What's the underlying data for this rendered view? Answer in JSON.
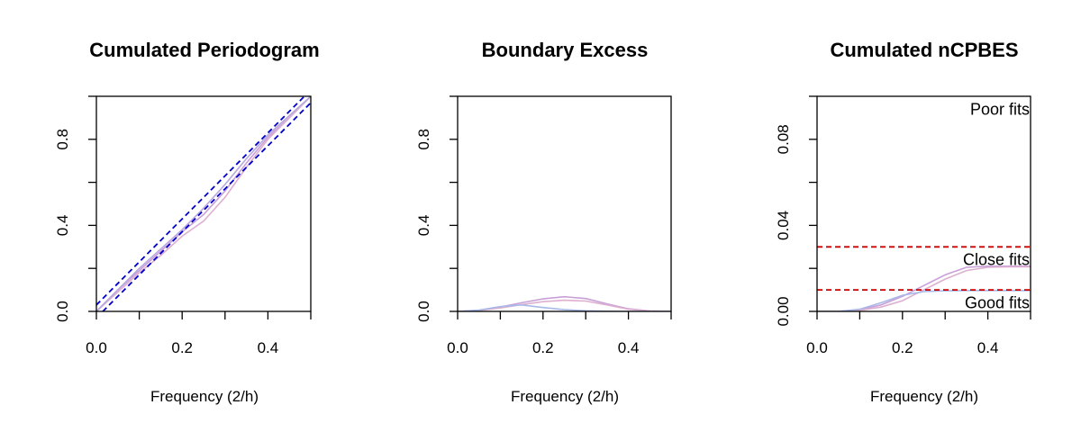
{
  "chart_data": [
    {
      "type": "line",
      "title": "Cumulated Periodogram",
      "xlabel": "Frequency (2/h)",
      "ylabel": "",
      "xlim": [
        0,
        0.5
      ],
      "ylim": [
        0,
        1
      ],
      "x_ticks": [
        0.0,
        0.1,
        0.2,
        0.3,
        0.4,
        0.5
      ],
      "x_tick_labels": [
        "0.0",
        "",
        "0.2",
        "",
        "0.4",
        ""
      ],
      "y_ticks": [
        0.0,
        0.2,
        0.4,
        0.6,
        0.8,
        1.0
      ],
      "y_tick_labels": [
        "0.0",
        "",
        "0.4",
        "",
        "0.8",
        ""
      ],
      "series": [
        {
          "color": "#c8a0d8",
          "x": [
            0,
            0.05,
            0.1,
            0.15,
            0.2,
            0.25,
            0.3,
            0.35,
            0.4,
            0.45,
            0.5
          ],
          "y": [
            0,
            0.1,
            0.19,
            0.28,
            0.37,
            0.45,
            0.56,
            0.69,
            0.81,
            0.9,
            1.0
          ]
        },
        {
          "color": "#ddb0cf",
          "x": [
            0,
            0.05,
            0.1,
            0.15,
            0.2,
            0.25,
            0.3,
            0.35,
            0.4,
            0.45,
            0.5
          ],
          "y": [
            0,
            0.09,
            0.18,
            0.26,
            0.35,
            0.42,
            0.53,
            0.67,
            0.8,
            0.9,
            1.0
          ]
        },
        {
          "color": "#b8a8e0",
          "x": [
            0,
            0.05,
            0.1,
            0.15,
            0.2,
            0.25,
            0.3,
            0.35,
            0.4,
            0.45,
            0.5
          ],
          "y": [
            0,
            0.1,
            0.2,
            0.29,
            0.38,
            0.48,
            0.59,
            0.71,
            0.82,
            0.91,
            1.0
          ]
        }
      ],
      "bounds": [
        {
          "color": "#0000cc",
          "style": "dashed",
          "x": [
            0,
            0.5
          ],
          "y": [
            0.03,
            1.03
          ]
        },
        {
          "color": "#0000cc",
          "style": "dashed",
          "x": [
            0,
            0.5
          ],
          "y": [
            -0.03,
            0.97
          ]
        }
      ],
      "annotations": []
    },
    {
      "type": "line",
      "title": "Boundary Excess",
      "xlabel": "Frequency (2/h)",
      "ylabel": "",
      "xlim": [
        0,
        0.5
      ],
      "ylim": [
        0,
        1
      ],
      "x_ticks": [
        0.0,
        0.1,
        0.2,
        0.3,
        0.4,
        0.5
      ],
      "x_tick_labels": [
        "0.0",
        "",
        "0.2",
        "",
        "0.4",
        ""
      ],
      "y_ticks": [
        0.0,
        0.2,
        0.4,
        0.6,
        0.8,
        1.0
      ],
      "y_tick_labels": [
        "0.0",
        "",
        "0.4",
        "",
        "0.8",
        ""
      ],
      "series": [
        {
          "color": "#c8a0d8",
          "x": [
            0,
            0.05,
            0.1,
            0.15,
            0.2,
            0.25,
            0.3,
            0.35,
            0.4,
            0.45,
            0.5
          ],
          "y": [
            0,
            0.005,
            0.02,
            0.04,
            0.058,
            0.068,
            0.06,
            0.035,
            0.012,
            0.002,
            0
          ]
        },
        {
          "color": "#ddb0cf",
          "x": [
            0,
            0.05,
            0.1,
            0.15,
            0.2,
            0.25,
            0.3,
            0.35,
            0.4,
            0.45,
            0.5
          ],
          "y": [
            0,
            0.004,
            0.016,
            0.032,
            0.045,
            0.052,
            0.048,
            0.03,
            0.01,
            0.002,
            0
          ]
        },
        {
          "color": "#a8b8e8",
          "x": [
            0,
            0.05,
            0.1,
            0.15,
            0.2,
            0.25,
            0.3,
            0.35,
            0.4,
            0.45,
            0.5
          ],
          "y": [
            0,
            0.006,
            0.022,
            0.03,
            0.018,
            0.008,
            0.003,
            0.001,
            0,
            0,
            0
          ]
        }
      ],
      "bounds": [],
      "annotations": []
    },
    {
      "type": "line",
      "title": "Cumulated nCPBES",
      "xlabel": "Frequency (2/h)",
      "ylabel": "",
      "xlim": [
        0,
        0.5
      ],
      "ylim": [
        0,
        0.1
      ],
      "x_ticks": [
        0.0,
        0.1,
        0.2,
        0.3,
        0.4,
        0.5
      ],
      "x_tick_labels": [
        "0.0",
        "",
        "0.2",
        "",
        "0.4",
        ""
      ],
      "y_ticks": [
        0.0,
        0.02,
        0.04,
        0.06,
        0.08,
        0.1
      ],
      "y_tick_labels": [
        "0.00",
        "",
        "0.04",
        "",
        "0.08",
        ""
      ],
      "series": [
        {
          "color": "#c8a0d8",
          "x": [
            0,
            0.05,
            0.1,
            0.15,
            0.2,
            0.25,
            0.3,
            0.35,
            0.4,
            0.45,
            0.5
          ],
          "y": [
            0,
            0,
            0.0008,
            0.003,
            0.007,
            0.012,
            0.017,
            0.0205,
            0.021,
            0.021,
            0.021
          ]
        },
        {
          "color": "#ddb0cf",
          "x": [
            0,
            0.05,
            0.1,
            0.15,
            0.2,
            0.25,
            0.3,
            0.35,
            0.4,
            0.45,
            0.5
          ],
          "y": [
            0,
            0,
            0.0005,
            0.002,
            0.005,
            0.01,
            0.015,
            0.019,
            0.0205,
            0.0207,
            0.0207
          ]
        },
        {
          "color": "#a8b8e8",
          "x": [
            0,
            0.05,
            0.1,
            0.15,
            0.2,
            0.25,
            0.3,
            0.35,
            0.4,
            0.45,
            0.5
          ],
          "y": [
            0,
            0,
            0.001,
            0.004,
            0.0075,
            0.0092,
            0.0096,
            0.0097,
            0.0097,
            0.0097,
            0.0097
          ]
        }
      ],
      "bounds": [
        {
          "color": "#cc0000",
          "style": "dashed",
          "x": [
            0,
            0.5
          ],
          "y": [
            0.03,
            0.03
          ]
        },
        {
          "color": "#cc0000",
          "style": "dashed",
          "x": [
            0,
            0.5
          ],
          "y": [
            0.01,
            0.01
          ]
        }
      ],
      "annotations": [
        {
          "text": "Poor fits",
          "x": 0.5,
          "y": 0.094,
          "anchor": "end"
        },
        {
          "text": "Close fits",
          "x": 0.5,
          "y": 0.024,
          "anchor": "end"
        },
        {
          "text": "Good fits",
          "x": 0.5,
          "y": 0.004,
          "anchor": "end"
        }
      ]
    }
  ]
}
